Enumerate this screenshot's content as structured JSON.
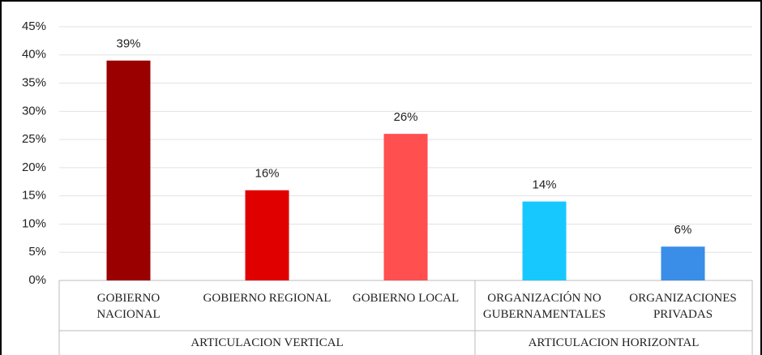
{
  "chart_data": {
    "type": "bar",
    "categories": [
      "GOBIERNO NACIONAL",
      "GOBIERNO REGIONAL",
      "GOBIERNO LOCAL",
      "ORGANIZACIÓN NO GUBERNAMENTALES",
      "ORGANIZACIONES PRIVADAS"
    ],
    "values": [
      39,
      16,
      26,
      14,
      6
    ],
    "value_labels": [
      "39%",
      "16%",
      "26%",
      "14%",
      "6%"
    ],
    "colors": [
      "#9b0000",
      "#e00000",
      "#ff4f4f",
      "#17c8ff",
      "#3a8ee8"
    ],
    "groups": [
      {
        "name": "ARTICULACION VERTICAL",
        "size": 3
      },
      {
        "name": "ARTICULACION HORIZONTAL",
        "size": 2
      }
    ],
    "ylim": [
      0,
      45
    ],
    "yticks": [
      {
        "value": 0,
        "label": "0%"
      },
      {
        "value": 5,
        "label": "5%"
      },
      {
        "value": 10,
        "label": "10%"
      },
      {
        "value": 15,
        "label": "15%"
      },
      {
        "value": 20,
        "label": "20%"
      },
      {
        "value": 25,
        "label": "25%"
      },
      {
        "value": 30,
        "label": "30%"
      },
      {
        "value": 35,
        "label": "35%"
      },
      {
        "value": 40,
        "label": "40%"
      },
      {
        "value": 45,
        "label": "45%"
      }
    ],
    "grid": true
  }
}
